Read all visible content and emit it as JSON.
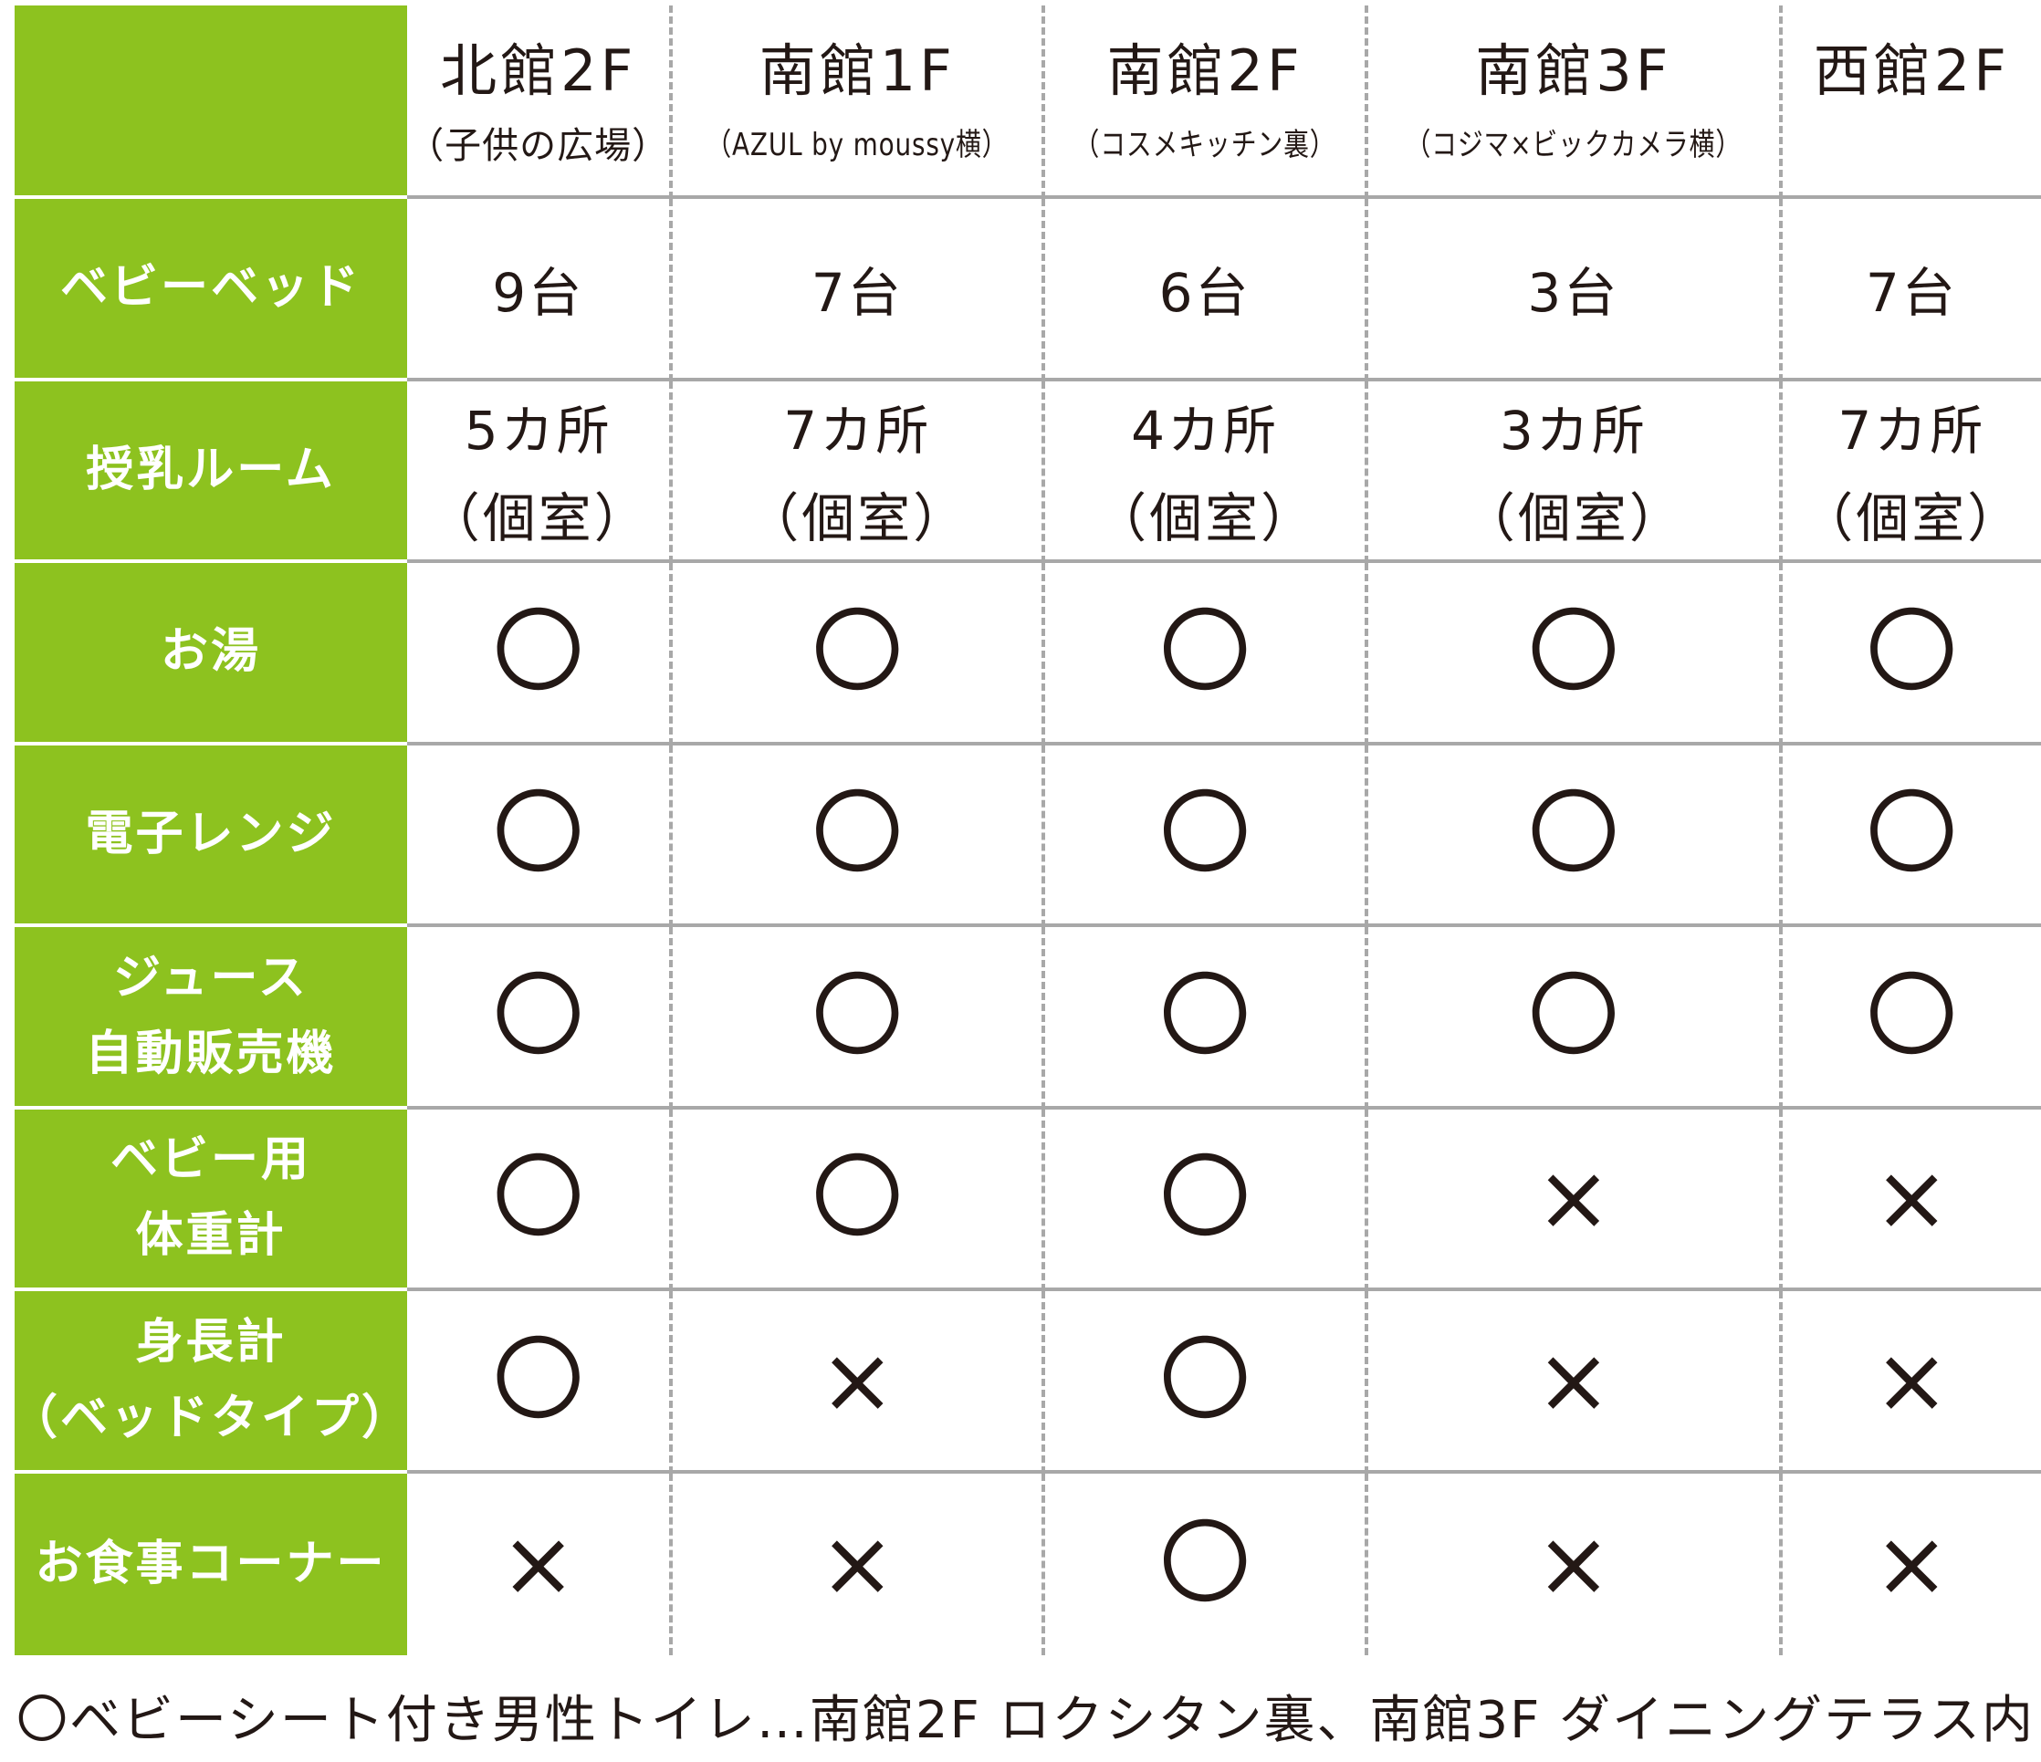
{
  "columns": [
    {
      "name": "北館2F",
      "note": "（子供の広場）"
    },
    {
      "name": "南館1F",
      "note": "（AZUL by moussy横）"
    },
    {
      "name": "南館2F",
      "note": "（コスメキッチン裏）"
    },
    {
      "name": "南館3F",
      "note": "（コジマ×ビックカメラ横）"
    },
    {
      "name": "西館2F",
      "note": ""
    }
  ],
  "rows": [
    {
      "label": [
        "ベビーベッド"
      ],
      "values": [
        [
          "9台"
        ],
        [
          "7台"
        ],
        [
          "6台"
        ],
        [
          "3台"
        ],
        [
          "7台"
        ]
      ]
    },
    {
      "label": [
        "授乳ルーム"
      ],
      "values": [
        [
          "5カ所",
          "（個室）"
        ],
        [
          "7カ所",
          "（個室）"
        ],
        [
          "4カ所",
          "（個室）"
        ],
        [
          "3カ所",
          "（個室）"
        ],
        [
          "7カ所",
          "（個室）"
        ]
      ]
    },
    {
      "label": [
        "お湯"
      ],
      "values": [
        "〇",
        "〇",
        "〇",
        "〇",
        "〇"
      ]
    },
    {
      "label": [
        "電子レンジ"
      ],
      "values": [
        "〇",
        "〇",
        "〇",
        "〇",
        "〇"
      ]
    },
    {
      "label": [
        "ジュース",
        "自動販売機"
      ],
      "values": [
        "〇",
        "〇",
        "〇",
        "〇",
        "〇"
      ]
    },
    {
      "label": [
        "ベビー用",
        "体重計"
      ],
      "values": [
        "〇",
        "〇",
        "〇",
        "×",
        "×"
      ]
    },
    {
      "label": [
        "身長計",
        "（ベッドタイプ）"
      ],
      "values": [
        "〇",
        "×",
        "〇",
        "×",
        "×"
      ]
    },
    {
      "label": [
        "お食事コーナー"
      ],
      "values": [
        "×",
        "×",
        "〇",
        "×",
        "×"
      ]
    }
  ],
  "footnote": "〇ベビーシート付き男性トイレ…南館2F ロクシタン裏、南館3F ダイニングテラス内",
  "colors": {
    "label_bg": "#8dc21f",
    "grid": "#a8a8a8",
    "text": "#231815"
  }
}
